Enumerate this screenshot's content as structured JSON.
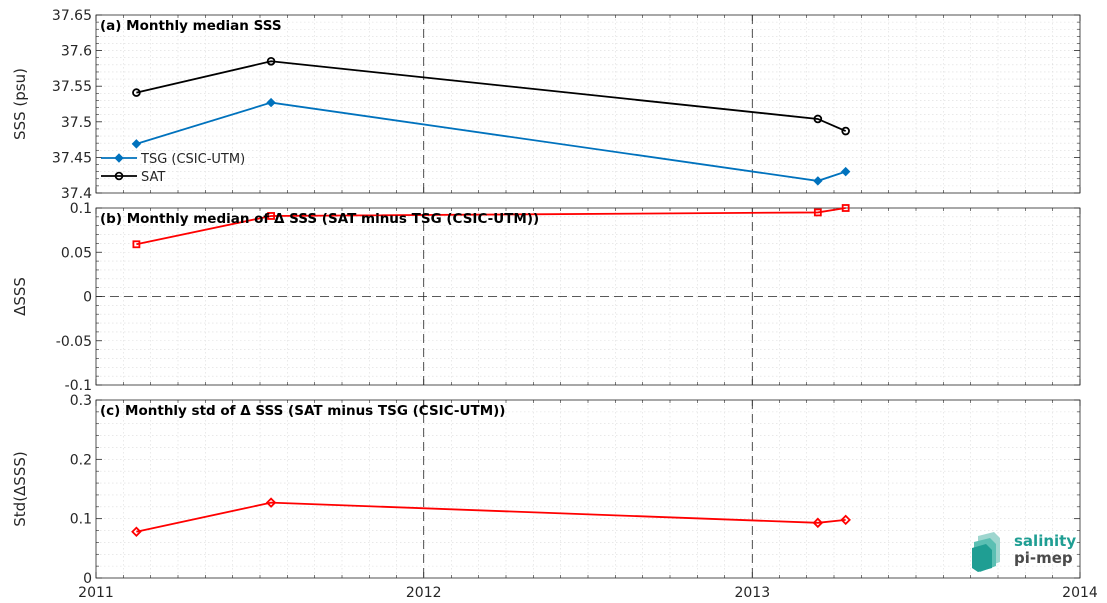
{
  "chart_data": [
    {
      "type": "line",
      "title": "(a) Monthly median SSS",
      "ylabel": "SSS (psu)",
      "x": [
        "2011-02",
        "2011-07",
        "2013-03",
        "2013-04"
      ],
      "xlim": [
        "2011-01-01",
        "2014-01-01"
      ],
      "xticks": [
        "2011",
        "2012",
        "2013",
        "2014"
      ],
      "ylim": [
        37.4,
        37.65
      ],
      "yticks": [
        "37.4",
        "37.45",
        "37.5",
        "37.55",
        "37.6",
        "37.65"
      ],
      "grid": true,
      "legend_position": "bottom-left",
      "series": [
        {
          "name": "TSG (CSIC-UTM)",
          "color": "#0072bd",
          "marker": "diamond",
          "values": [
            37.469,
            37.527,
            37.417,
            37.43
          ]
        },
        {
          "name": "SAT",
          "color": "#000000",
          "marker": "circle",
          "values": [
            37.541,
            37.585,
            37.504,
            37.487
          ]
        }
      ]
    },
    {
      "type": "line",
      "title": "(b) Monthly median of Δ SSS (SAT minus TSG (CSIC-UTM))",
      "ylabel": "ΔSSS",
      "x": [
        "2011-02",
        "2011-07",
        "2013-03",
        "2013-04"
      ],
      "xlim": [
        "2011-01-01",
        "2014-01-01"
      ],
      "ylim": [
        -0.1,
        0.1
      ],
      "yticks": [
        "-0.1",
        "-0.05",
        "0",
        "0.05",
        "0.1"
      ],
      "grid": true,
      "reference_line": 0,
      "series": [
        {
          "color": "#ff0000",
          "marker": "square",
          "values": [
            0.059,
            0.091,
            0.095,
            0.1
          ]
        }
      ]
    },
    {
      "type": "line",
      "title": "(c) Monthly std of Δ SSS (SAT minus TSG (CSIC-UTM))",
      "ylabel": "Std(ΔSSS)",
      "x": [
        "2011-02",
        "2011-07",
        "2013-03",
        "2013-04"
      ],
      "xlim": [
        "2011-01-01",
        "2014-01-01"
      ],
      "xticks": [
        "2011",
        "2012",
        "2013",
        "2014"
      ],
      "ylim": [
        0,
        0.3
      ],
      "yticks": [
        "0",
        "0.1",
        "0.2",
        "0.3"
      ],
      "grid": true,
      "series": [
        {
          "color": "#ff0000",
          "marker": "diamond",
          "values": [
            0.078,
            0.127,
            0.093,
            0.098
          ]
        }
      ]
    }
  ],
  "x_vertical_markers": [
    "2012-01-01",
    "2013-01-01"
  ],
  "logo": {
    "line1": "salinity",
    "line2": "pi-mep",
    "accent": "#1f9e93"
  }
}
